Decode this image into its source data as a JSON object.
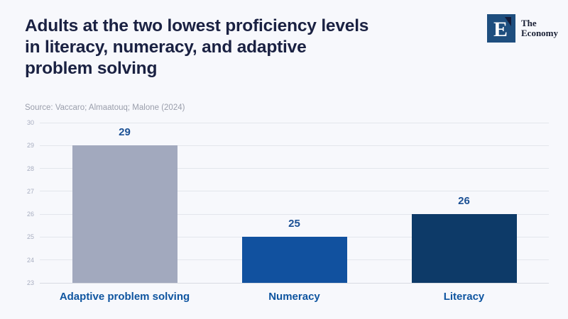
{
  "page": {
    "background": "#F7F8FC"
  },
  "header": {
    "title_lines": [
      "Adults at the two lowest proficiency levels",
      "in literacy, numeracy, and adaptive",
      "problem solving"
    ],
    "source": "Source: Vaccaro; Almaatouq; Malone (2024)",
    "logo": {
      "letter": "E",
      "name_line1": "The",
      "name_line2": "Economy",
      "square_color": "#1E4E7E",
      "mark_color": "#131B38",
      "letter_color": "#FFFFFF",
      "text_color": "#1A2035"
    }
  },
  "chart_data": {
    "type": "bar",
    "title": "Adults at the two lowest proficiency levels in literacy, numeracy, and adaptive problem solving",
    "source": "Source: Vaccaro; Almaatouq; Malone (2024)",
    "categories": [
      "Adaptive problem solving",
      "Numeracy",
      "Literacy"
    ],
    "values": [
      29,
      25,
      26
    ],
    "bar_colors": [
      "#A2A9BE",
      "#11519F",
      "#0D3A68"
    ],
    "xlabel": "",
    "ylabel": "",
    "ylim": [
      23,
      30
    ],
    "ytick_step": 1,
    "yticks": [
      23,
      24,
      25,
      26,
      27,
      28,
      29,
      30
    ],
    "grid": true,
    "legend": "none",
    "gridline_color": "#E3E6EC",
    "baseline_color": "#D8DBE2",
    "tick_label_color": "#A8AEC0",
    "value_label_color": "#1B5094",
    "category_label_color": "#0F55A0"
  }
}
